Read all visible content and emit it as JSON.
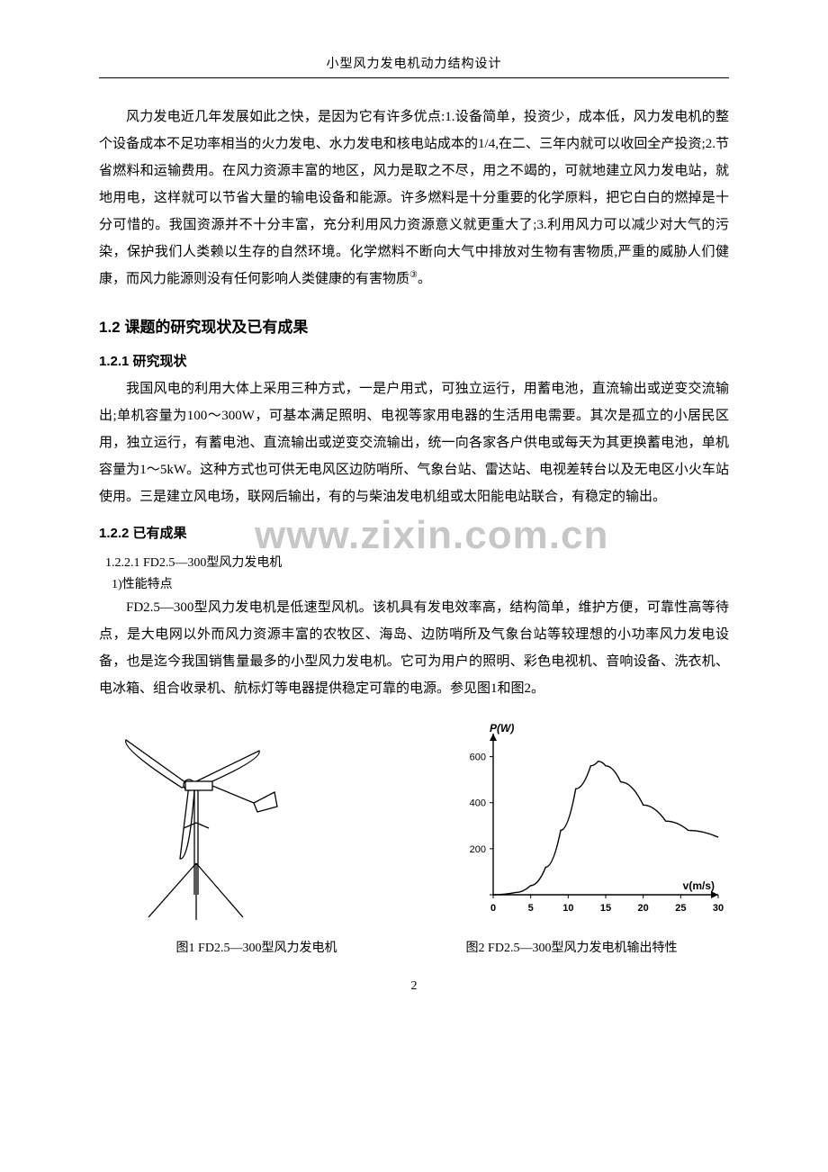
{
  "running_head": "小型风力发电机动力结构设计",
  "page_number": "2",
  "watermark": "www.zixin.com.cn",
  "para1": "风力发电近几年发展如此之快，是因为它有许多优点:1.设备简单，投资少，成本低，风力发电机的整个设备成本不足功率相当的火力发电、水力发电和核电站成本的1/4,在二、三年内就可以收回全产投资;2.节省燃料和运输费用。在风力资源丰富的地区，风力是取之不尽，用之不竭的，可就地建立风力发电站，就地用电，这样就可以节省大量的输电设备和能源。许多燃料是十分重要的化学原料，把它白白的燃掉是十分可惜的。我国资源并不十分丰富，充分利用风力资源意义就更重大了;3.利用风力可以减少对大气的污染，保护我们人类赖以生存的自然环境。化学燃料不断向大气中排放对生物有害物质,严重的威胁人们健康，而风力能源则没有任何影响人类健康的有害物质",
  "footnote_mark": "③",
  "para1_end": "。",
  "h2_1": "1.2  课题的研究现状及已有成果",
  "h3_1": "1.2.1 研究现状",
  "para2": "我国风电的利用大体上采用三种方式，一是户用式，可独立运行，用蓄电池，直流输出或逆变交流输出;单机容量为100～300W，可基本满足照明、电视等家用电器的生活用电需要。其次是孤立的小居民区用，独立运行，有蓄电池、直流输出或逆变交流输出，统一向各家各户供电或每天为其更换蓄电池，单机容量为1～5kW。这种方式也可供无电风区边防哨所、气象台站、雷达站、电视差转台以及无电区小火车站使用。三是建立风电场，联网后输出，有的与柴油发电机组或太阳能电站联合，有稳定的输出。",
  "h3_2": "1.2.2 已有成果",
  "h4_1": "1.2.2.1  FD2.5—300型风力发电机",
  "h5_1": "1)性能特点",
  "para3": "FD2.5—300型风力发电机是低速型风机。该机具有发电效率高，结构简单，维护方便，可靠性高等待点，是大电网以外而风力资源丰富的农牧区、海岛、边防哨所及气象台站等较理想的小功率风力发电设备，也是迄今我国销售量最多的小型风力发电机。它可为用户的照明、彩色电视机、音响设备、洗衣机、电冰箱、组合收录机、航标灯等电器提供稳定可靠的电源。参见图1和图2。",
  "caption_left": "图1  FD2.5—300型风力发电机",
  "caption_right": "图2  FD2.5—300型风力发电机输出特性",
  "chart": {
    "type": "line",
    "y_label": "P(W)",
    "x_label": "v(m/s)",
    "x_ticks": [
      0,
      5,
      10,
      15,
      20,
      25,
      30
    ],
    "y_ticks": [
      0,
      200,
      400,
      600
    ],
    "xlim": [
      0,
      30
    ],
    "ylim": [
      0,
      700
    ],
    "line_color": "#000000",
    "axis_color": "#000000",
    "background": "#ffffff",
    "tick_fontsize": 11,
    "label_fontsize": 12,
    "line_width": 1.4,
    "data_points": [
      [
        0,
        0
      ],
      [
        3,
        10
      ],
      [
        5,
        40
      ],
      [
        7,
        120
      ],
      [
        9,
        280
      ],
      [
        11,
        460
      ],
      [
        13,
        560
      ],
      [
        14,
        580
      ],
      [
        15,
        560
      ],
      [
        17,
        490
      ],
      [
        20,
        390
      ],
      [
        23,
        320
      ],
      [
        26,
        280
      ],
      [
        30,
        250
      ]
    ]
  },
  "turbine": {
    "stroke": "#000000",
    "fill": "#ffffff",
    "line_width": 1.3
  }
}
